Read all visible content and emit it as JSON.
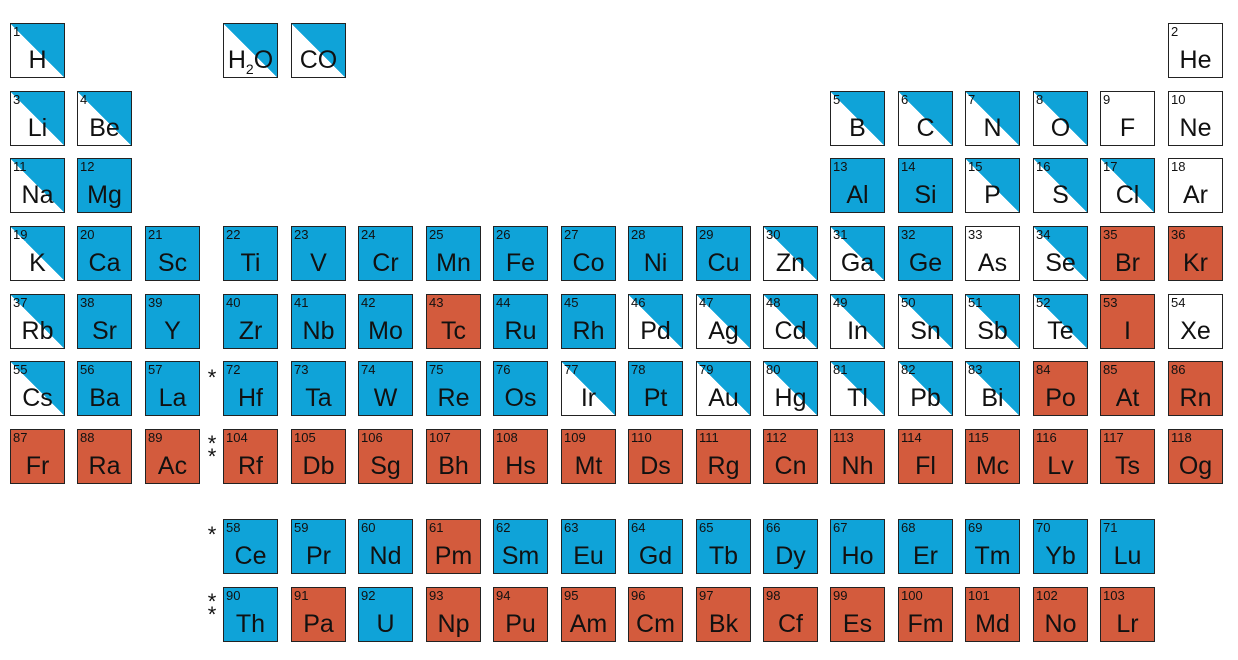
{
  "colors": {
    "blue": "#0fa3d8",
    "red": "#d35b3d",
    "white": "#ffffff"
  },
  "star_label": "*",
  "double_star_label": "**",
  "cells": [
    {
      "n": "1",
      "s": "H",
      "fill": "split",
      "r": 0,
      "c": 0
    },
    {
      "n": "",
      "s": "H2O",
      "fill": "split",
      "r": 0,
      "c": 3,
      "sub": true
    },
    {
      "n": "",
      "s": "CO",
      "fill": "split",
      "r": 0,
      "c": 4
    },
    {
      "n": "2",
      "s": "He",
      "fill": "white",
      "r": 0,
      "c": 17
    },
    {
      "n": "3",
      "s": "Li",
      "fill": "split",
      "r": 1,
      "c": 0
    },
    {
      "n": "4",
      "s": "Be",
      "fill": "split",
      "r": 1,
      "c": 1
    },
    {
      "n": "5",
      "s": "B",
      "fill": "split",
      "r": 1,
      "c": 12
    },
    {
      "n": "6",
      "s": "C",
      "fill": "split",
      "r": 1,
      "c": 13
    },
    {
      "n": "7",
      "s": "N",
      "fill": "split",
      "r": 1,
      "c": 14
    },
    {
      "n": "8",
      "s": "O",
      "fill": "split",
      "r": 1,
      "c": 15
    },
    {
      "n": "9",
      "s": "F",
      "fill": "white",
      "r": 1,
      "c": 16
    },
    {
      "n": "10",
      "s": "Ne",
      "fill": "white",
      "r": 1,
      "c": 17
    },
    {
      "n": "11",
      "s": "Na",
      "fill": "split",
      "r": 2,
      "c": 0
    },
    {
      "n": "12",
      "s": "Mg",
      "fill": "blue",
      "r": 2,
      "c": 1
    },
    {
      "n": "13",
      "s": "Al",
      "fill": "blue",
      "r": 2,
      "c": 12
    },
    {
      "n": "14",
      "s": "Si",
      "fill": "blue",
      "r": 2,
      "c": 13
    },
    {
      "n": "15",
      "s": "P",
      "fill": "split",
      "r": 2,
      "c": 14
    },
    {
      "n": "16",
      "s": "S",
      "fill": "split",
      "r": 2,
      "c": 15
    },
    {
      "n": "17",
      "s": "Cl",
      "fill": "split",
      "r": 2,
      "c": 16
    },
    {
      "n": "18",
      "s": "Ar",
      "fill": "white",
      "r": 2,
      "c": 17
    },
    {
      "n": "19",
      "s": "K",
      "fill": "split",
      "r": 3,
      "c": 0
    },
    {
      "n": "20",
      "s": "Ca",
      "fill": "blue",
      "r": 3,
      "c": 1
    },
    {
      "n": "21",
      "s": "Sc",
      "fill": "blue",
      "r": 3,
      "c": 2
    },
    {
      "n": "22",
      "s": "Ti",
      "fill": "blue",
      "r": 3,
      "c": 3
    },
    {
      "n": "23",
      "s": "V",
      "fill": "blue",
      "r": 3,
      "c": 4
    },
    {
      "n": "24",
      "s": "Cr",
      "fill": "blue",
      "r": 3,
      "c": 5
    },
    {
      "n": "25",
      "s": "Mn",
      "fill": "blue",
      "r": 3,
      "c": 6
    },
    {
      "n": "26",
      "s": "Fe",
      "fill": "blue",
      "r": 3,
      "c": 7
    },
    {
      "n": "27",
      "s": "Co",
      "fill": "blue",
      "r": 3,
      "c": 8
    },
    {
      "n": "28",
      "s": "Ni",
      "fill": "blue",
      "r": 3,
      "c": 9
    },
    {
      "n": "29",
      "s": "Cu",
      "fill": "blue",
      "r": 3,
      "c": 10
    },
    {
      "n": "30",
      "s": "Zn",
      "fill": "split",
      "r": 3,
      "c": 11
    },
    {
      "n": "31",
      "s": "Ga",
      "fill": "split",
      "r": 3,
      "c": 12
    },
    {
      "n": "32",
      "s": "Ge",
      "fill": "blue",
      "r": 3,
      "c": 13
    },
    {
      "n": "33",
      "s": "As",
      "fill": "white",
      "r": 3,
      "c": 14
    },
    {
      "n": "34",
      "s": "Se",
      "fill": "split",
      "r": 3,
      "c": 15
    },
    {
      "n": "35",
      "s": "Br",
      "fill": "red",
      "r": 3,
      "c": 16
    },
    {
      "n": "36",
      "s": "Kr",
      "fill": "red",
      "r": 3,
      "c": 17
    },
    {
      "n": "37",
      "s": "Rb",
      "fill": "split",
      "r": 4,
      "c": 0
    },
    {
      "n": "38",
      "s": "Sr",
      "fill": "blue",
      "r": 4,
      "c": 1
    },
    {
      "n": "39",
      "s": "Y",
      "fill": "blue",
      "r": 4,
      "c": 2
    },
    {
      "n": "40",
      "s": "Zr",
      "fill": "blue",
      "r": 4,
      "c": 3
    },
    {
      "n": "41",
      "s": "Nb",
      "fill": "blue",
      "r": 4,
      "c": 4
    },
    {
      "n": "42",
      "s": "Mo",
      "fill": "blue",
      "r": 4,
      "c": 5
    },
    {
      "n": "43",
      "s": "Tc",
      "fill": "red",
      "r": 4,
      "c": 6
    },
    {
      "n": "44",
      "s": "Ru",
      "fill": "blue",
      "r": 4,
      "c": 7
    },
    {
      "n": "45",
      "s": "Rh",
      "fill": "blue",
      "r": 4,
      "c": 8
    },
    {
      "n": "46",
      "s": "Pd",
      "fill": "split",
      "r": 4,
      "c": 9
    },
    {
      "n": "47",
      "s": "Ag",
      "fill": "split",
      "r": 4,
      "c": 10
    },
    {
      "n": "48",
      "s": "Cd",
      "fill": "split",
      "r": 4,
      "c": 11
    },
    {
      "n": "49",
      "s": "In",
      "fill": "split",
      "r": 4,
      "c": 12
    },
    {
      "n": "50",
      "s": "Sn",
      "fill": "split",
      "r": 4,
      "c": 13
    },
    {
      "n": "51",
      "s": "Sb",
      "fill": "split",
      "r": 4,
      "c": 14
    },
    {
      "n": "52",
      "s": "Te",
      "fill": "split",
      "r": 4,
      "c": 15
    },
    {
      "n": "53",
      "s": "I",
      "fill": "red",
      "r": 4,
      "c": 16
    },
    {
      "n": "54",
      "s": "Xe",
      "fill": "white",
      "r": 4,
      "c": 17
    },
    {
      "n": "55",
      "s": "Cs",
      "fill": "split",
      "r": 5,
      "c": 0
    },
    {
      "n": "56",
      "s": "Ba",
      "fill": "blue",
      "r": 5,
      "c": 1
    },
    {
      "n": "57",
      "s": "La",
      "fill": "blue",
      "r": 5,
      "c": 2
    },
    {
      "n": "72",
      "s": "Hf",
      "fill": "blue",
      "r": 5,
      "c": 3
    },
    {
      "n": "73",
      "s": "Ta",
      "fill": "blue",
      "r": 5,
      "c": 4
    },
    {
      "n": "74",
      "s": "W",
      "fill": "blue",
      "r": 5,
      "c": 5
    },
    {
      "n": "75",
      "s": "Re",
      "fill": "blue",
      "r": 5,
      "c": 6
    },
    {
      "n": "76",
      "s": "Os",
      "fill": "blue",
      "r": 5,
      "c": 7
    },
    {
      "n": "77",
      "s": "Ir",
      "fill": "split",
      "r": 5,
      "c": 8
    },
    {
      "n": "78",
      "s": "Pt",
      "fill": "blue",
      "r": 5,
      "c": 9
    },
    {
      "n": "79",
      "s": "Au",
      "fill": "split",
      "r": 5,
      "c": 10
    },
    {
      "n": "80",
      "s": "Hg",
      "fill": "split",
      "r": 5,
      "c": 11
    },
    {
      "n": "81",
      "s": "Tl",
      "fill": "split",
      "r": 5,
      "c": 12
    },
    {
      "n": "82",
      "s": "Pb",
      "fill": "split",
      "r": 5,
      "c": 13
    },
    {
      "n": "83",
      "s": "Bi",
      "fill": "split",
      "r": 5,
      "c": 14
    },
    {
      "n": "84",
      "s": "Po",
      "fill": "red",
      "r": 5,
      "c": 15
    },
    {
      "n": "85",
      "s": "At",
      "fill": "red",
      "r": 5,
      "c": 16
    },
    {
      "n": "86",
      "s": "Rn",
      "fill": "red",
      "r": 5,
      "c": 17
    },
    {
      "n": "87",
      "s": "Fr",
      "fill": "red",
      "r": 6,
      "c": 0
    },
    {
      "n": "88",
      "s": "Ra",
      "fill": "red",
      "r": 6,
      "c": 1
    },
    {
      "n": "89",
      "s": "Ac",
      "fill": "red",
      "r": 6,
      "c": 2
    },
    {
      "n": "104",
      "s": "Rf",
      "fill": "red",
      "r": 6,
      "c": 3
    },
    {
      "n": "105",
      "s": "Db",
      "fill": "red",
      "r": 6,
      "c": 4
    },
    {
      "n": "106",
      "s": "Sg",
      "fill": "red",
      "r": 6,
      "c": 5
    },
    {
      "n": "107",
      "s": "Bh",
      "fill": "red",
      "r": 6,
      "c": 6
    },
    {
      "n": "108",
      "s": "Hs",
      "fill": "red",
      "r": 6,
      "c": 7
    },
    {
      "n": "109",
      "s": "Mt",
      "fill": "red",
      "r": 6,
      "c": 8
    },
    {
      "n": "110",
      "s": "Ds",
      "fill": "red",
      "r": 6,
      "c": 9
    },
    {
      "n": "111",
      "s": "Rg",
      "fill": "red",
      "r": 6,
      "c": 10
    },
    {
      "n": "112",
      "s": "Cn",
      "fill": "red",
      "r": 6,
      "c": 11
    },
    {
      "n": "113",
      "s": "Nh",
      "fill": "red",
      "r": 6,
      "c": 12
    },
    {
      "n": "114",
      "s": "Fl",
      "fill": "red",
      "r": 6,
      "c": 13
    },
    {
      "n": "115",
      "s": "Mc",
      "fill": "red",
      "r": 6,
      "c": 14
    },
    {
      "n": "116",
      "s": "Lv",
      "fill": "red",
      "r": 6,
      "c": 15
    },
    {
      "n": "117",
      "s": "Ts",
      "fill": "red",
      "r": 6,
      "c": 16
    },
    {
      "n": "118",
      "s": "Og",
      "fill": "red",
      "r": 6,
      "c": 17
    },
    {
      "n": "58",
      "s": "Ce",
      "fill": "blue",
      "r": 7,
      "c": 3
    },
    {
      "n": "59",
      "s": "Pr",
      "fill": "blue",
      "r": 7,
      "c": 4
    },
    {
      "n": "60",
      "s": "Nd",
      "fill": "blue",
      "r": 7,
      "c": 5
    },
    {
      "n": "61",
      "s": "Pm",
      "fill": "red",
      "r": 7,
      "c": 6
    },
    {
      "n": "62",
      "s": "Sm",
      "fill": "blue",
      "r": 7,
      "c": 7
    },
    {
      "n": "63",
      "s": "Eu",
      "fill": "blue",
      "r": 7,
      "c": 8
    },
    {
      "n": "64",
      "s": "Gd",
      "fill": "blue",
      "r": 7,
      "c": 9
    },
    {
      "n": "65",
      "s": "Tb",
      "fill": "blue",
      "r": 7,
      "c": 10
    },
    {
      "n": "66",
      "s": "Dy",
      "fill": "blue",
      "r": 7,
      "c": 11
    },
    {
      "n": "67",
      "s": "Ho",
      "fill": "blue",
      "r": 7,
      "c": 12
    },
    {
      "n": "68",
      "s": "Er",
      "fill": "blue",
      "r": 7,
      "c": 13
    },
    {
      "n": "69",
      "s": "Tm",
      "fill": "blue",
      "r": 7,
      "c": 14
    },
    {
      "n": "70",
      "s": "Yb",
      "fill": "blue",
      "r": 7,
      "c": 15
    },
    {
      "n": "71",
      "s": "Lu",
      "fill": "blue",
      "r": 7,
      "c": 16
    },
    {
      "n": "90",
      "s": "Th",
      "fill": "blue",
      "r": 8,
      "c": 3
    },
    {
      "n": "91",
      "s": "Pa",
      "fill": "red",
      "r": 8,
      "c": 4
    },
    {
      "n": "92",
      "s": "U",
      "fill": "blue",
      "r": 8,
      "c": 5
    },
    {
      "n": "93",
      "s": "Np",
      "fill": "red",
      "r": 8,
      "c": 6
    },
    {
      "n": "94",
      "s": "Pu",
      "fill": "red",
      "r": 8,
      "c": 7
    },
    {
      "n": "95",
      "s": "Am",
      "fill": "red",
      "r": 8,
      "c": 8
    },
    {
      "n": "96",
      "s": "Cm",
      "fill": "red",
      "r": 8,
      "c": 9
    },
    {
      "n": "97",
      "s": "Bk",
      "fill": "red",
      "r": 8,
      "c": 10
    },
    {
      "n": "98",
      "s": "Cf",
      "fill": "red",
      "r": 8,
      "c": 11
    },
    {
      "n": "99",
      "s": "Es",
      "fill": "red",
      "r": 8,
      "c": 12
    },
    {
      "n": "100",
      "s": "Fm",
      "fill": "red",
      "r": 8,
      "c": 13
    },
    {
      "n": "101",
      "s": "Md",
      "fill": "red",
      "r": 8,
      "c": 14
    },
    {
      "n": "102",
      "s": "No",
      "fill": "red",
      "r": 8,
      "c": 15
    },
    {
      "n": "103",
      "s": "Lr",
      "fill": "red",
      "r": 8,
      "c": 16
    }
  ]
}
